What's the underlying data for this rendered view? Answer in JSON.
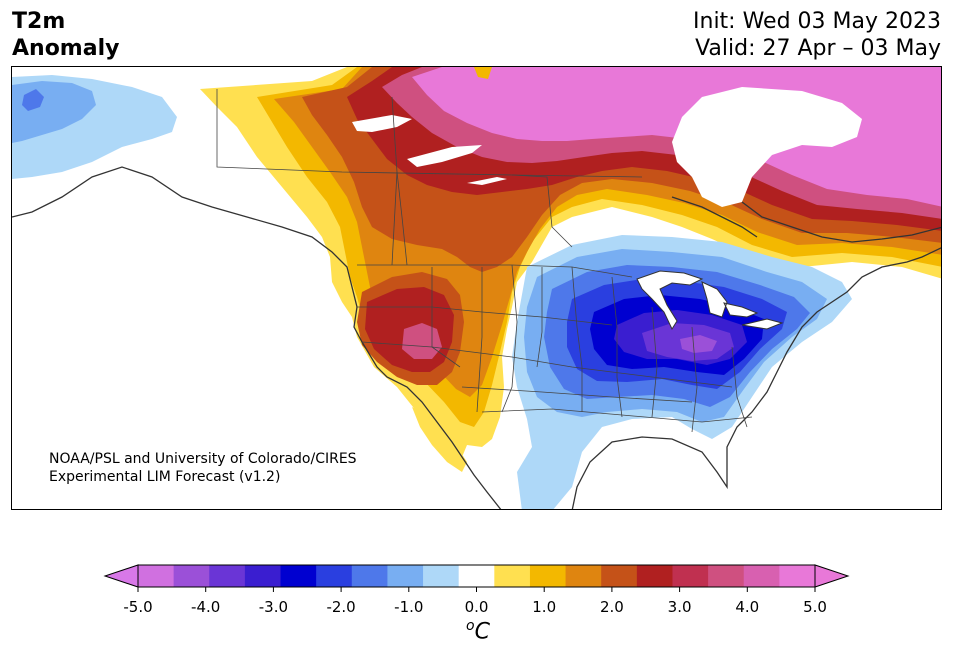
{
  "title": {
    "line1": "T2m",
    "line2": "Anomaly"
  },
  "header_right": {
    "init": "Init: Wed 03 May 2023",
    "valid": "Valid: 27 Apr – 03 May"
  },
  "credit": {
    "line1": "NOAA/PSL and University of Colorado/CIRES",
    "line2": "Experimental LIM Forecast (v1.2)"
  },
  "colorbar": {
    "colors": [
      "#d070e0",
      "#9b50d8",
      "#6a35d6",
      "#3a1ed0",
      "#0000d0",
      "#2a3fe0",
      "#4e78ea",
      "#78aef2",
      "#aed8f8",
      "#ffffff",
      "#ffe050",
      "#f3b800",
      "#df8510",
      "#c55218",
      "#b02020",
      "#c03050",
      "#cf5080",
      "#d860b0",
      "#e878d8"
    ],
    "low_extend_color": "#d878e8",
    "high_extend_color": "#e878d8",
    "ticks": [
      "-5.0",
      "-4.0",
      "-3.0",
      "-2.0",
      "-1.0",
      "0.0",
      "1.0",
      "2.0",
      "3.0",
      "4.0",
      "5.0"
    ],
    "unit_sup": "o",
    "unit": "C"
  },
  "map": {
    "region": "North America",
    "anomaly_colors": {
      "pink": "#e878d8",
      "magenta": "#cf5080",
      "darkred": "#b02020",
      "rust": "#c55218",
      "orange": "#df8510",
      "gold": "#f3b800",
      "yellow": "#ffe050",
      "lightblue": "#aed8f8",
      "skyblue": "#78aef2",
      "blue": "#4e78ea",
      "royal": "#2a3fe0",
      "navy": "#0000d0",
      "indigo": "#3a1ed0",
      "violet": "#6a35d6",
      "purple": "#9b50d8"
    }
  }
}
